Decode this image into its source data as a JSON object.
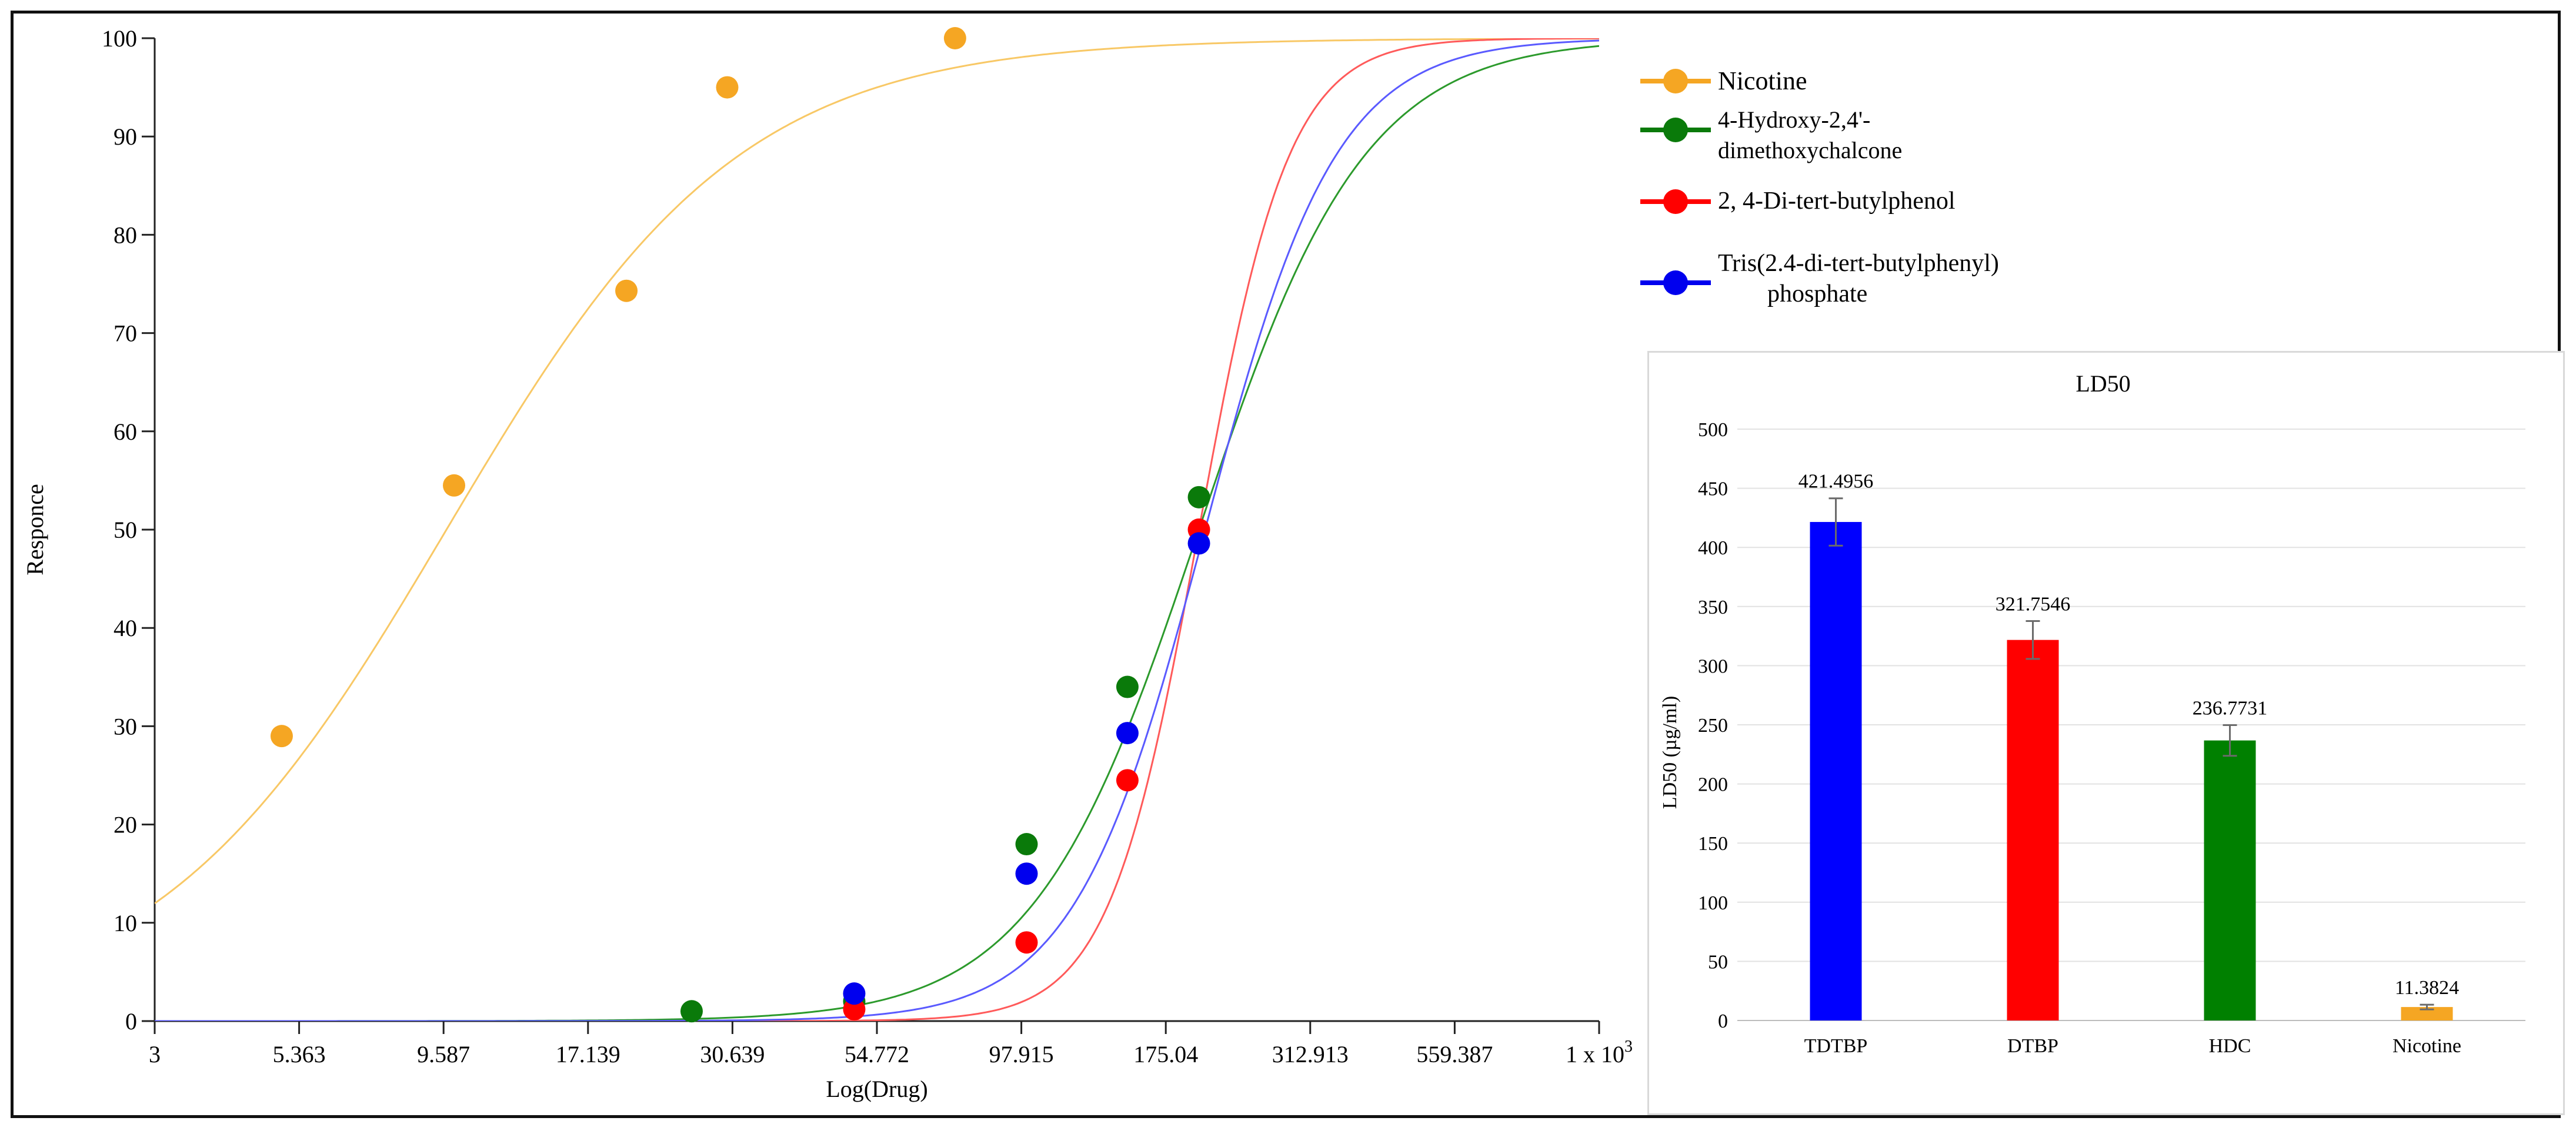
{
  "chart_data": [
    {
      "type": "scatter",
      "title": "",
      "xlabel": "Log(Drug)",
      "ylabel": "Responce",
      "x_scale": "log",
      "xlim": [
        3,
        1000
      ],
      "ylim": [
        0,
        100
      ],
      "x_ticks": [
        3,
        5.363,
        9.587,
        17.139,
        30.639,
        54.772,
        97.915,
        175.04,
        312.913,
        559.387,
        1000
      ],
      "x_tick_labels": [
        "3",
        "5.363",
        "9.587",
        "17.139",
        "30.639",
        "54.772",
        "97.915",
        "175.04",
        "312.913",
        "559.387",
        "1 x 10"
      ],
      "x_tick_last_superscript": "3",
      "y_ticks": [
        0,
        10,
        20,
        30,
        40,
        50,
        60,
        70,
        80,
        90,
        100
      ],
      "y_tick_labels": [
        "0",
        "10",
        "20",
        "30",
        "40",
        "50",
        "60",
        "70",
        "80",
        "90",
        "100"
      ],
      "grid": false,
      "legend_position": "right",
      "series": [
        {
          "name": "Nicotine",
          "color": "#f5a623",
          "curve_color": "#f8c866",
          "points": [
            [
              5.0,
              29
            ],
            [
              10.0,
              54.5
            ],
            [
              20.0,
              74.3
            ],
            [
              30.0,
              95
            ],
            [
              75.0,
              100
            ]
          ],
          "fit": {
            "ec50": 9.7,
            "hill": 1.7
          }
        },
        {
          "name_lines": [
            "4-Hydroxy-2,4'-",
            "dimethoxychalcone"
          ],
          "color": "#0a7a0a",
          "curve_color": "#2c9a2c",
          "points": [
            [
              26.0,
              1
            ],
            [
              50.0,
              2
            ],
            [
              100.0,
              18
            ],
            [
              150.0,
              34
            ],
            [
              200.0,
              53.3
            ]
          ],
          "fit": {
            "ec50": 200,
            "hill": 3.0
          }
        },
        {
          "name_lines": [
            "2, 4-Di-tert-butylphenol"
          ],
          "color": "#ff0000",
          "curve_color": "#ff5a5a",
          "points": [
            [
              50.0,
              1.2
            ],
            [
              100.0,
              8
            ],
            [
              150.0,
              24.5
            ],
            [
              200.0,
              50
            ]
          ],
          "fit": {
            "ec50": 200,
            "hill": 5.5
          }
        },
        {
          "name_lines": [
            "Tris(2.4-di-tert-butylphenyl)",
            "phosphate"
          ],
          "color": "#0000ee",
          "curve_color": "#5a5aff",
          "points": [
            [
              50.0,
              2.8
            ],
            [
              100.0,
              15
            ],
            [
              150.0,
              29.3
            ],
            [
              200.0,
              48.6
            ]
          ],
          "fit": {
            "ec50": 205,
            "hill": 3.8
          }
        }
      ]
    },
    {
      "type": "bar",
      "title": "LD50",
      "xlabel": "",
      "ylabel": "LD50 (µg/ml)",
      "ylim": [
        0,
        500
      ],
      "y_ticks": [
        "0",
        "50",
        "100",
        "150",
        "200",
        "250",
        "300",
        "350",
        "400",
        "450",
        "500"
      ],
      "grid": true,
      "categories": [
        "TDTBP",
        "DTBP",
        "HDC",
        "Nicotine"
      ],
      "values": [
        421.4956,
        321.7546,
        236.7731,
        11.3824
      ],
      "value_labels": [
        "421.4956",
        "321.7546",
        "236.7731",
        "11.3824"
      ],
      "errors": [
        20,
        16,
        13,
        2
      ],
      "colors": [
        "#0000ff",
        "#ff0000",
        "#008000",
        "#f5a623"
      ]
    }
  ]
}
